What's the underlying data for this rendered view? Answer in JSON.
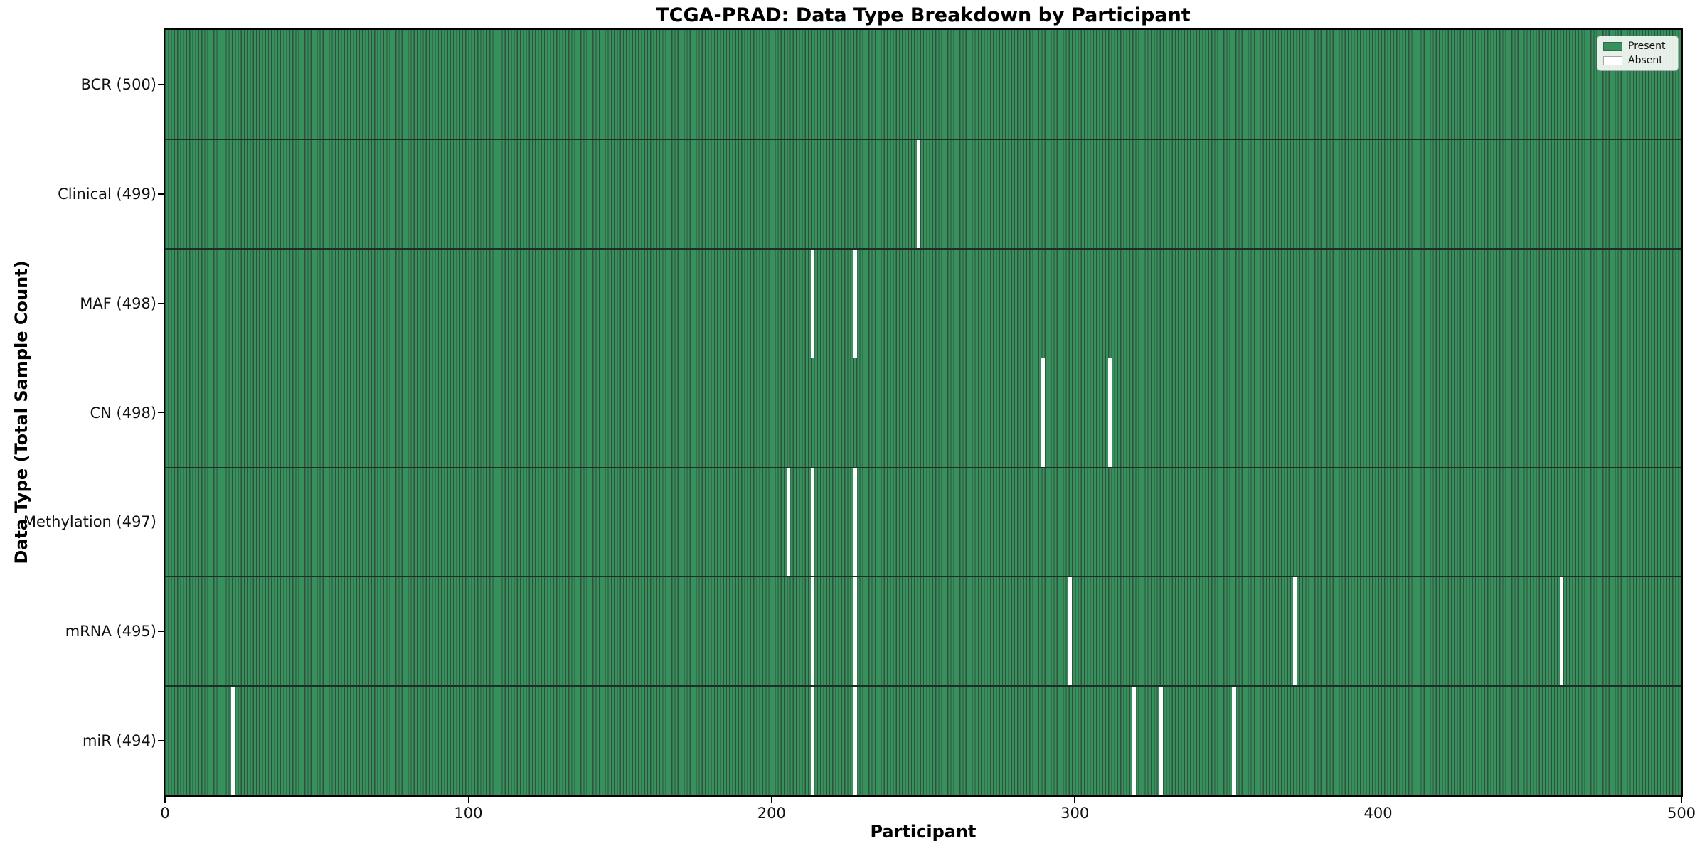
{
  "chart_data": {
    "type": "heatmap",
    "title": "TCGA-PRAD: Data Type Breakdown by Participant",
    "xlabel": "Participant",
    "ylabel": "Data Type (Total Sample Count)",
    "x_ticks": [
      0,
      100,
      200,
      300,
      400,
      500
    ],
    "x_range": [
      0,
      500
    ],
    "n_participants": 500,
    "legend_position": "upper right",
    "grid": false,
    "legend": [
      {
        "label": "Present",
        "color": "#37915C"
      },
      {
        "label": "Absent",
        "color": "#FFFFFF"
      }
    ],
    "colors": {
      "present_fill": "#37915C",
      "bar_edge": "#32503E",
      "row_separator": "#1D2F24",
      "plot_border": "#000000",
      "absent_fill": "#FFFFFF"
    },
    "rows": [
      {
        "label": "BCR (500)",
        "total": 500,
        "absent_participants": []
      },
      {
        "label": "Clinical (499)",
        "total": 499,
        "absent_participants": [
          248
        ]
      },
      {
        "label": "MAF (498)",
        "total": 498,
        "absent_participants": [
          213,
          227
        ]
      },
      {
        "label": "CN (498)",
        "total": 498,
        "absent_participants": [
          289,
          311
        ]
      },
      {
        "label": "Methylation (497)",
        "total": 497,
        "absent_participants": [
          205,
          213,
          227
        ]
      },
      {
        "label": "mRNA (495)",
        "total": 495,
        "absent_participants": [
          213,
          227,
          298,
          372,
          460
        ]
      },
      {
        "label": "miR (494)",
        "total": 494,
        "absent_participants": [
          22,
          213,
          227,
          319,
          328,
          352
        ]
      }
    ]
  }
}
